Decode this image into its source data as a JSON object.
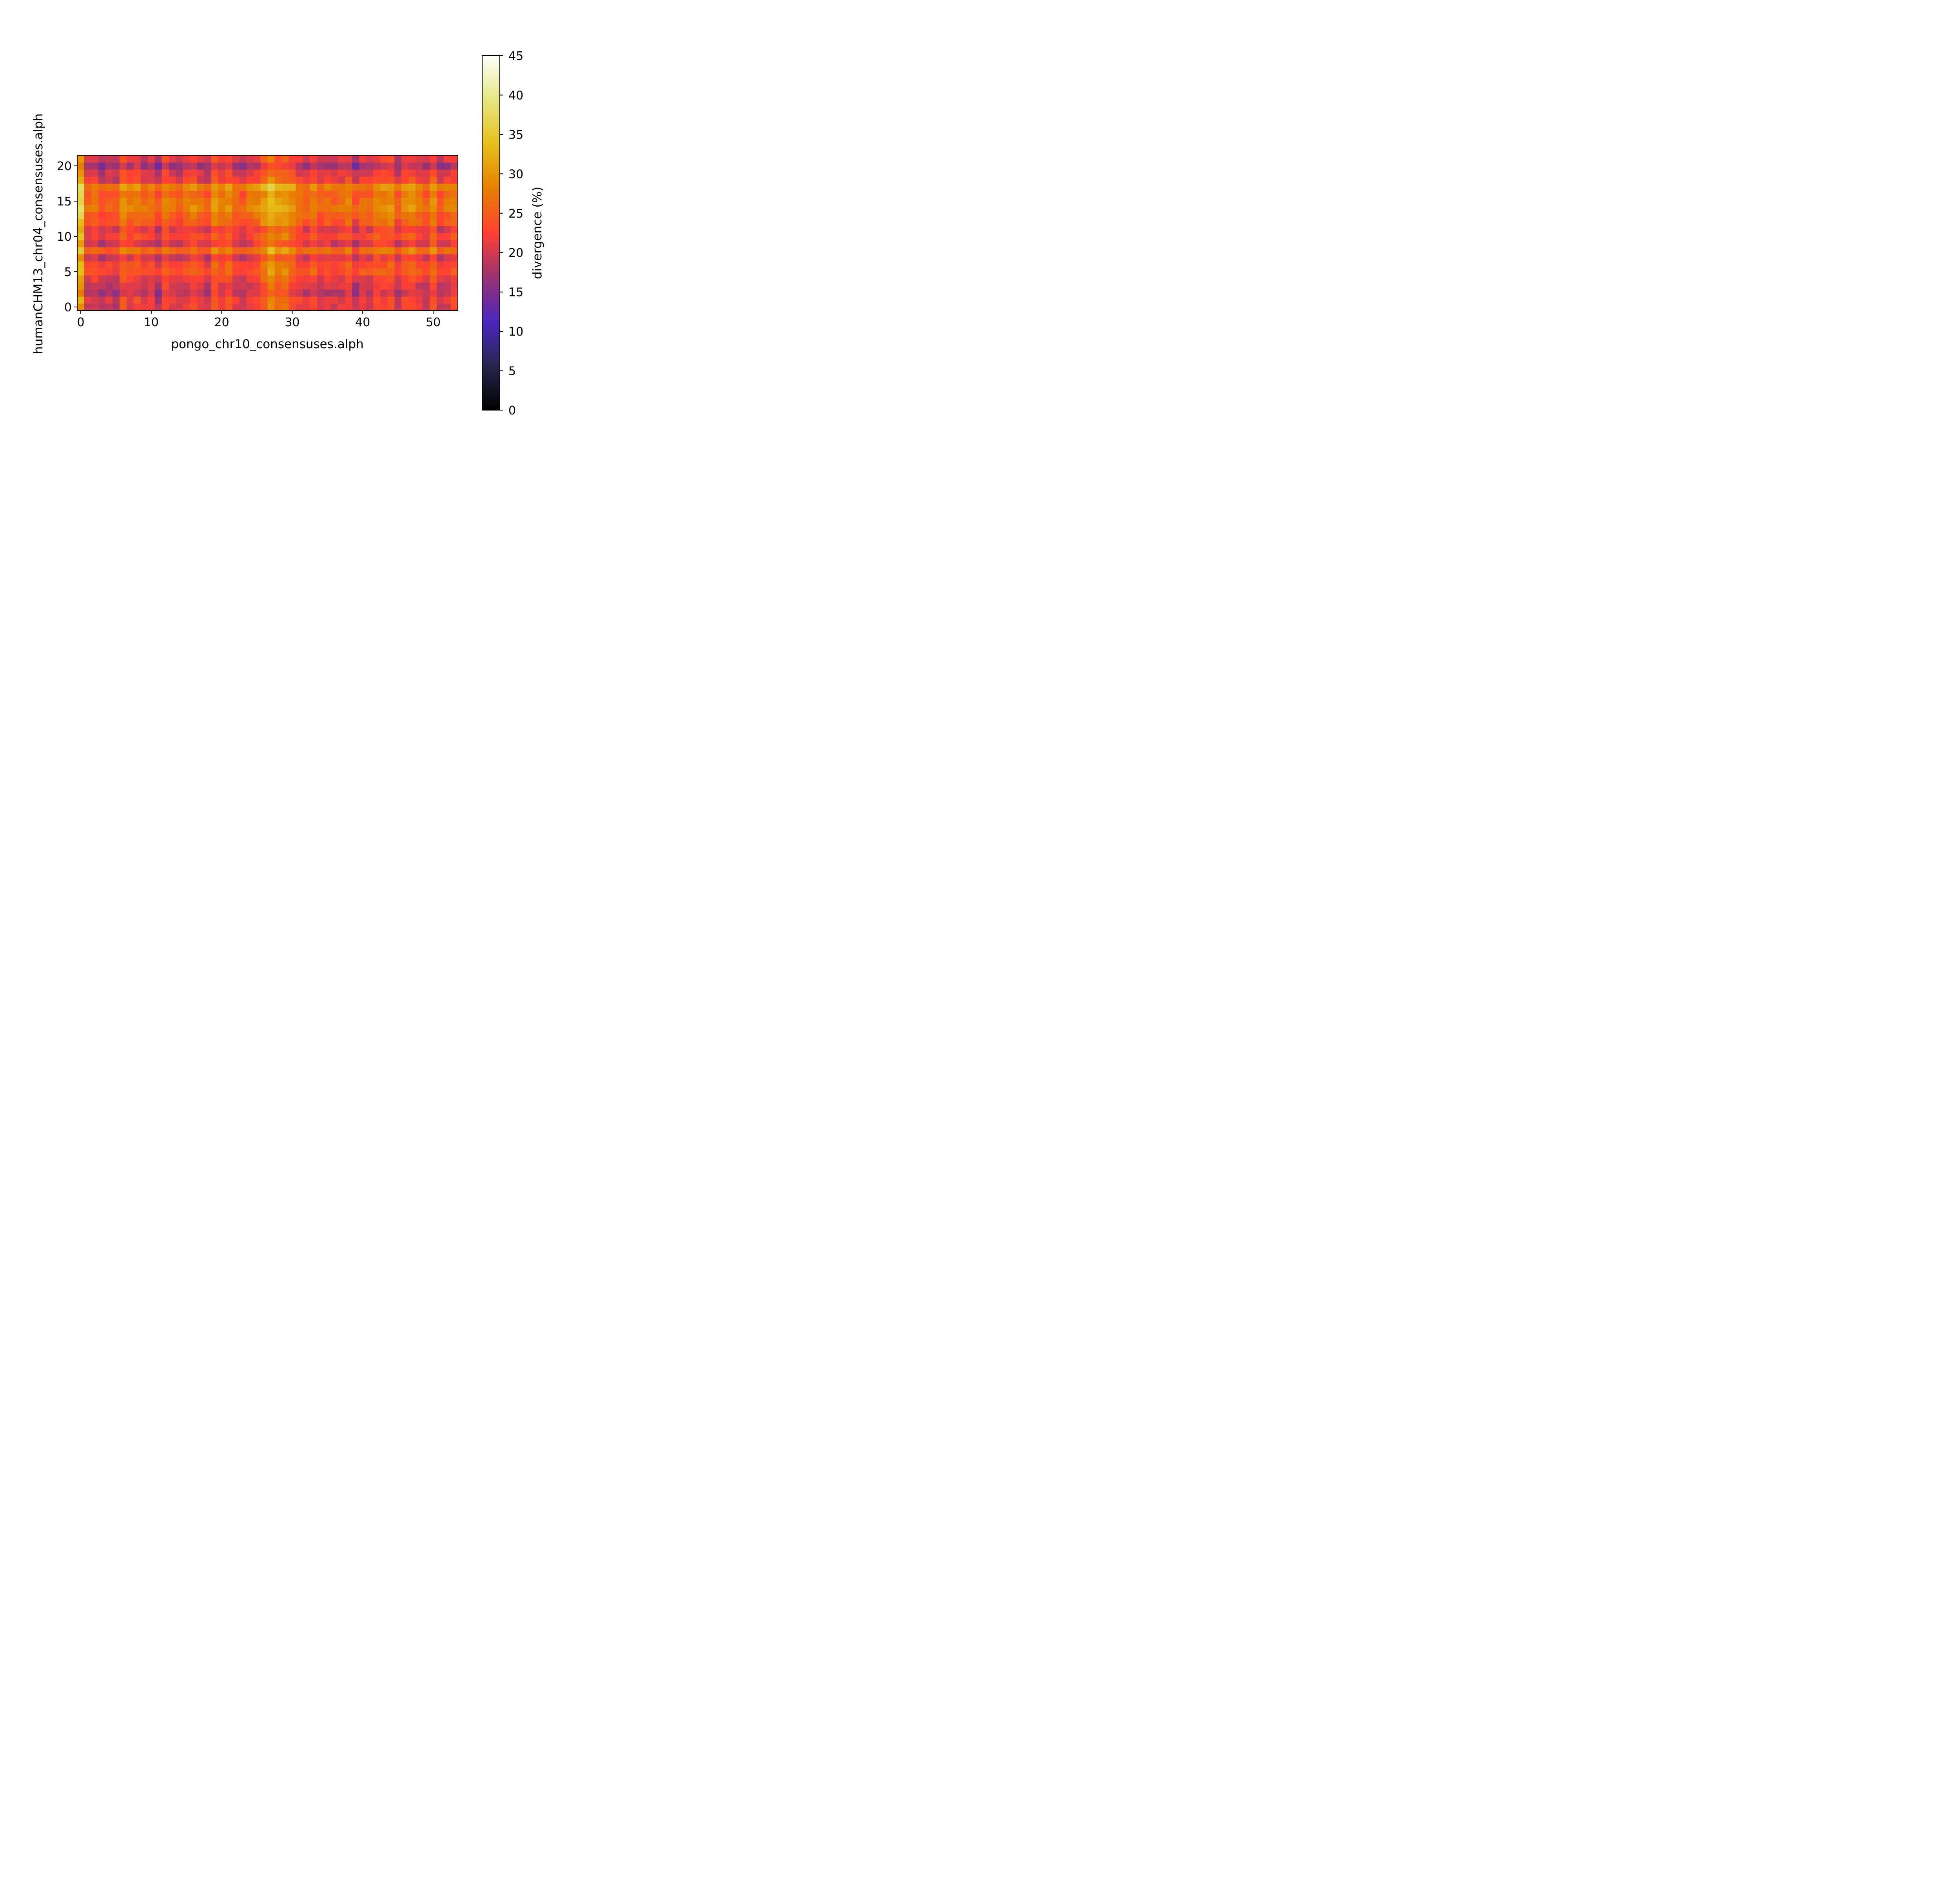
{
  "chart_data": {
    "type": "heatmap",
    "xlabel": "pongo_chr10_consensuses.alph",
    "ylabel": "humanCHM13_chr04_consensuses.alph",
    "colorbar_label": "divergence (%)",
    "colormap": "CMRmap",
    "color_scale": {
      "min": 0,
      "max": 45
    },
    "rows": 22,
    "cols": 54,
    "row_origin": "bottom",
    "x_ticks": [
      0,
      10,
      20,
      30,
      40,
      50
    ],
    "x_tick_labels": [
      "0",
      "10",
      "20",
      "30",
      "40",
      "50"
    ],
    "y_ticks": [
      0,
      5,
      10,
      15,
      20
    ],
    "y_tick_labels": [
      "0",
      "5",
      "10",
      "15",
      "20"
    ],
    "colorbar_ticks": [
      0,
      5,
      10,
      15,
      20,
      25,
      30,
      35,
      40,
      45
    ],
    "colorbar_tick_labels": [
      "0",
      "5",
      "10",
      "15",
      "20",
      "25",
      "30",
      "35",
      "40",
      "45"
    ],
    "col_effect": [
      9.0,
      -2.0,
      -1.0,
      -3.0,
      -2.0,
      -3.0,
      1.5,
      -0.5,
      0.5,
      -1.5,
      -1.0,
      -4.0,
      1.0,
      -1.0,
      -2.0,
      -0.5,
      0.5,
      -1.5,
      -2.5,
      2.0,
      0.5,
      1.5,
      -1.0,
      -2.5,
      -0.5,
      0.5,
      3.0,
      6.0,
      3.5,
      4.0,
      2.0,
      -0.5,
      -1.5,
      0.5,
      -2.0,
      -1.0,
      -2.0,
      -1.0,
      0.5,
      -3.5,
      -1.0,
      -1.5,
      1.0,
      0.5,
      1.5,
      -2.5,
      0.5,
      1.5,
      -0.5,
      -2.0,
      2.0,
      -2.5,
      -1.0,
      0.5
    ],
    "row_effect": [
      -1.5,
      -1.0,
      -3.5,
      -2.5,
      -1.0,
      1.5,
      0.5,
      -2.0,
      3.5,
      -2.0,
      0.5,
      -1.5,
      2.0,
      3.0,
      5.0,
      4.0,
      3.0,
      5.5,
      -1.0,
      -2.0,
      -5.0,
      -2.0
    ],
    "base_value": 23.5
  }
}
